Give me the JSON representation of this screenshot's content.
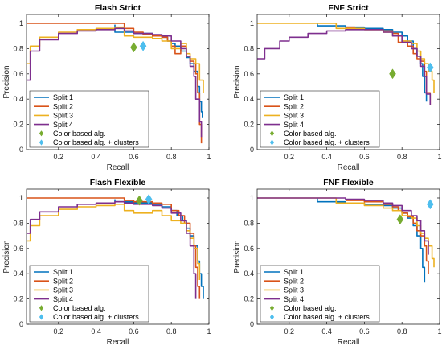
{
  "colors": {
    "split1": "#0072BD",
    "split2": "#D95319",
    "split3": "#EDB120",
    "split4": "#7E2F8E",
    "color_alg": "#77AC30",
    "color_alg_clusters": "#4DBEEE",
    "axis": "#262626",
    "background": "#ffffff"
  },
  "chart_data": [
    {
      "type": "line",
      "title": "Flash Strict",
      "xlabel": "Recall",
      "ylabel": "Precision",
      "xlim": [
        0.03,
        1.0
      ],
      "ylim": [
        0,
        1.07
      ],
      "xticks": [
        0.2,
        0.4,
        0.6,
        0.8,
        1
      ],
      "yticks": [
        0,
        0.2,
        0.4,
        0.6,
        0.8,
        1
      ],
      "xtick_labels": [
        "0.2",
        "0.4",
        "0.6",
        "0.8",
        "1"
      ],
      "ytick_labels": [
        "0",
        "0.2",
        "0.4",
        "0.6",
        "0.8",
        "1"
      ],
      "grid": false,
      "legend_position": "bottom-left",
      "series": [
        {
          "name": "Split 1",
          "color_key": "split1",
          "x": [
            0.5,
            0.5,
            0.6,
            0.7,
            0.75,
            0.78,
            0.8,
            0.82,
            0.85,
            0.88,
            0.9,
            0.92,
            0.94,
            0.95,
            0.96,
            0.965
          ],
          "y": [
            0.99,
            0.93,
            0.92,
            0.9,
            0.89,
            0.86,
            0.84,
            0.82,
            0.78,
            0.73,
            0.68,
            0.62,
            0.5,
            0.38,
            0.3,
            0.25
          ]
        },
        {
          "name": "Split 2",
          "color_key": "split2",
          "x": [
            0.03,
            0.5,
            0.55,
            0.6,
            0.65,
            0.7,
            0.75,
            0.78,
            0.8,
            0.82,
            0.85,
            0.88,
            0.9,
            0.92,
            0.93,
            0.94,
            0.95,
            0.96
          ],
          "y": [
            1.0,
            1.0,
            0.96,
            0.93,
            0.91,
            0.9,
            0.89,
            0.86,
            0.82,
            0.76,
            0.82,
            0.74,
            0.7,
            0.68,
            0.6,
            0.45,
            0.2,
            0.05
          ]
        },
        {
          "name": "Split 3",
          "color_key": "split3",
          "x": [
            0.03,
            0.05,
            0.1,
            0.2,
            0.3,
            0.4,
            0.5,
            0.55,
            0.6,
            0.7,
            0.75,
            0.8,
            0.85,
            0.88,
            0.9,
            0.93,
            0.95,
            0.97
          ],
          "y": [
            0.68,
            0.82,
            0.89,
            0.93,
            0.95,
            0.96,
            0.97,
            0.9,
            0.89,
            0.88,
            0.86,
            0.8,
            0.84,
            0.76,
            0.72,
            0.68,
            0.55,
            0.45
          ]
        },
        {
          "name": "Split 4",
          "color_key": "split4",
          "x": [
            0.03,
            0.05,
            0.1,
            0.2,
            0.3,
            0.4,
            0.5,
            0.55,
            0.6,
            0.7,
            0.75,
            0.8,
            0.85,
            0.88,
            0.9,
            0.92,
            0.93,
            0.95,
            0.96
          ],
          "y": [
            0.55,
            0.78,
            0.87,
            0.92,
            0.94,
            0.95,
            0.96,
            0.94,
            0.92,
            0.91,
            0.9,
            0.86,
            0.8,
            0.74,
            0.66,
            0.58,
            0.4,
            0.22,
            0.1
          ]
        }
      ],
      "markers": [
        {
          "name": "Color based alg.",
          "color_key": "color_alg",
          "x": 0.6,
          "y": 0.81
        },
        {
          "name": "Color based alg. + clusters",
          "color_key": "color_alg_clusters",
          "x": 0.65,
          "y": 0.82
        }
      ]
    },
    {
      "type": "line",
      "title": "FNF Strict",
      "xlabel": "Recall",
      "ylabel": "Precision",
      "xlim": [
        0.03,
        1.0
      ],
      "ylim": [
        0,
        1.07
      ],
      "xticks": [
        0.2,
        0.4,
        0.6,
        0.8,
        1
      ],
      "yticks": [
        0,
        0.2,
        0.4,
        0.6,
        0.8,
        1
      ],
      "xtick_labels": [
        "0.2",
        "0.4",
        "0.6",
        "0.8",
        "1"
      ],
      "ytick_labels": [
        "0",
        "0.2",
        "0.4",
        "0.6",
        "0.8",
        "1"
      ],
      "grid": false,
      "legend_position": "bottom-left",
      "series": [
        {
          "name": "Split 1",
          "color_key": "split1",
          "x": [
            0.35,
            0.35,
            0.5,
            0.6,
            0.7,
            0.75,
            0.8,
            0.83,
            0.86,
            0.88,
            0.9,
            0.91,
            0.92,
            0.93
          ],
          "y": [
            1.0,
            0.98,
            0.97,
            0.96,
            0.95,
            0.93,
            0.9,
            0.86,
            0.8,
            0.74,
            0.68,
            0.58,
            0.45,
            0.38
          ]
        },
        {
          "name": "Split 2",
          "color_key": "split2",
          "x": [
            0.5,
            0.55,
            0.6,
            0.7,
            0.75,
            0.78,
            0.8,
            0.83,
            0.86,
            0.88,
            0.9,
            0.92,
            0.93,
            0.95
          ],
          "y": [
            0.97,
            0.96,
            0.95,
            0.94,
            0.92,
            0.85,
            0.86,
            0.82,
            0.76,
            0.72,
            0.7,
            0.62,
            0.45,
            0.35
          ]
        },
        {
          "name": "Split 3",
          "color_key": "split3",
          "x": [
            0.03,
            0.45,
            0.45,
            0.6,
            0.7,
            0.75,
            0.8,
            0.85,
            0.88,
            0.9,
            0.92,
            0.94,
            0.96,
            0.97
          ],
          "y": [
            1.0,
            1.0,
            0.96,
            0.95,
            0.93,
            0.9,
            0.86,
            0.84,
            0.78,
            0.72,
            0.68,
            0.62,
            0.55,
            0.45
          ]
        },
        {
          "name": "Split 4",
          "color_key": "split4",
          "x": [
            0.03,
            0.07,
            0.1,
            0.15,
            0.2,
            0.3,
            0.4,
            0.5,
            0.6,
            0.7,
            0.75,
            0.8,
            0.85,
            0.88,
            0.9,
            0.92,
            0.93,
            0.95
          ],
          "y": [
            0.72,
            0.8,
            0.8,
            0.86,
            0.89,
            0.92,
            0.94,
            0.95,
            0.95,
            0.93,
            0.9,
            0.85,
            0.8,
            0.74,
            0.66,
            0.58,
            0.44,
            0.35
          ]
        }
      ],
      "markers": [
        {
          "name": "Color based alg.",
          "color_key": "color_alg",
          "x": 0.75,
          "y": 0.6
        },
        {
          "name": "Color based alg. + clusters",
          "color_key": "color_alg_clusters",
          "x": 0.95,
          "y": 0.65
        }
      ]
    },
    {
      "type": "line",
      "title": "Flash Flexible",
      "xlabel": "Recall",
      "ylabel": "Precision",
      "xlim": [
        0.03,
        1.0
      ],
      "ylim": [
        0,
        1.07
      ],
      "xticks": [
        0.2,
        0.4,
        0.6,
        0.8,
        1
      ],
      "yticks": [
        0,
        0.2,
        0.4,
        0.6,
        0.8,
        1
      ],
      "xtick_labels": [
        "0.2",
        "0.4",
        "0.6",
        "0.8",
        "1"
      ],
      "ytick_labels": [
        "0",
        "0.2",
        "0.4",
        "0.6",
        "0.8",
        "1"
      ],
      "grid": false,
      "legend_position": "bottom-left",
      "series": [
        {
          "name": "Split 1",
          "color_key": "split1",
          "x": [
            0.5,
            0.5,
            0.6,
            0.7,
            0.75,
            0.8,
            0.83,
            0.86,
            0.88,
            0.9,
            0.92,
            0.94,
            0.95,
            0.96,
            0.97
          ],
          "y": [
            0.99,
            0.97,
            0.96,
            0.95,
            0.93,
            0.9,
            0.86,
            0.82,
            0.76,
            0.7,
            0.62,
            0.5,
            0.4,
            0.3,
            0.2
          ]
        },
        {
          "name": "Split 2",
          "color_key": "split2",
          "x": [
            0.03,
            0.5,
            0.55,
            0.6,
            0.7,
            0.75,
            0.8,
            0.84,
            0.87,
            0.9,
            0.92,
            0.93,
            0.94,
            0.95
          ],
          "y": [
            1.0,
            1.0,
            0.98,
            0.97,
            0.96,
            0.95,
            0.9,
            0.86,
            0.8,
            0.72,
            0.62,
            0.45,
            0.3,
            0.2
          ]
        },
        {
          "name": "Split 3",
          "color_key": "split3",
          "x": [
            0.03,
            0.05,
            0.1,
            0.2,
            0.3,
            0.4,
            0.5,
            0.55,
            0.6,
            0.7,
            0.75,
            0.8,
            0.85,
            0.88,
            0.9,
            0.92,
            0.94,
            0.95
          ],
          "y": [
            0.66,
            0.78,
            0.86,
            0.91,
            0.93,
            0.94,
            0.95,
            0.9,
            0.88,
            0.9,
            0.86,
            0.82,
            0.8,
            0.74,
            0.68,
            0.6,
            0.48,
            0.35
          ]
        },
        {
          "name": "Split 4",
          "color_key": "split4",
          "x": [
            0.03,
            0.05,
            0.1,
            0.2,
            0.3,
            0.4,
            0.5,
            0.55,
            0.6,
            0.7,
            0.75,
            0.8,
            0.85,
            0.88,
            0.9,
            0.92,
            0.93
          ],
          "y": [
            0.72,
            0.83,
            0.89,
            0.93,
            0.95,
            0.96,
            0.97,
            0.96,
            0.95,
            0.94,
            0.92,
            0.88,
            0.82,
            0.72,
            0.62,
            0.4,
            0.2
          ]
        }
      ],
      "markers": [
        {
          "name": "Color based alg.",
          "color_key": "color_alg",
          "x": 0.63,
          "y": 0.98
        },
        {
          "name": "Color based alg. + clusters",
          "color_key": "color_alg_clusters",
          "x": 0.68,
          "y": 0.99
        }
      ]
    },
    {
      "type": "line",
      "title": "FNF Flexible",
      "xlabel": "Recall",
      "ylabel": "Precision",
      "xlim": [
        0.03,
        1.0
      ],
      "ylim": [
        0,
        1.07
      ],
      "xticks": [
        0.2,
        0.4,
        0.6,
        0.8,
        1
      ],
      "yticks": [
        0,
        0.2,
        0.4,
        0.6,
        0.8,
        1
      ],
      "xtick_labels": [
        "0.2",
        "0.4",
        "0.6",
        "0.8",
        "1"
      ],
      "ytick_labels": [
        "0",
        "0.2",
        "0.4",
        "0.6",
        "0.8",
        "1"
      ],
      "grid": false,
      "legend_position": "bottom-left",
      "series": [
        {
          "name": "Split 1",
          "color_key": "split1",
          "x": [
            0.35,
            0.35,
            0.5,
            0.6,
            0.7,
            0.75,
            0.8,
            0.83,
            0.86,
            0.88,
            0.9,
            0.91,
            0.92
          ],
          "y": [
            1.0,
            0.97,
            0.96,
            0.95,
            0.94,
            0.92,
            0.88,
            0.84,
            0.78,
            0.7,
            0.6,
            0.45,
            0.33
          ]
        },
        {
          "name": "Split 2",
          "color_key": "split2",
          "x": [
            0.5,
            0.6,
            0.7,
            0.75,
            0.78,
            0.8,
            0.83,
            0.86,
            0.88,
            0.9,
            0.92,
            0.93,
            0.94
          ],
          "y": [
            0.98,
            0.97,
            0.95,
            0.93,
            0.9,
            0.88,
            0.85,
            0.8,
            0.74,
            0.7,
            0.62,
            0.5,
            0.4
          ]
        },
        {
          "name": "Split 3",
          "color_key": "split3",
          "x": [
            0.03,
            0.45,
            0.45,
            0.6,
            0.7,
            0.75,
            0.8,
            0.85,
            0.88,
            0.9,
            0.92,
            0.94,
            0.96,
            0.97
          ],
          "y": [
            1.0,
            1.0,
            0.96,
            0.94,
            0.92,
            0.9,
            0.86,
            0.84,
            0.78,
            0.72,
            0.68,
            0.62,
            0.52,
            0.45
          ]
        },
        {
          "name": "Split 4",
          "color_key": "split4",
          "x": [
            0.03,
            0.3,
            0.5,
            0.6,
            0.7,
            0.75,
            0.8,
            0.85,
            0.88,
            0.9,
            0.92,
            0.94
          ],
          "y": [
            1.0,
            1.0,
            0.99,
            0.98,
            0.96,
            0.94,
            0.9,
            0.86,
            0.82,
            0.74,
            0.66,
            0.55
          ]
        }
      ],
      "markers": [
        {
          "name": "Color based alg.",
          "color_key": "color_alg",
          "x": 0.79,
          "y": 0.83
        },
        {
          "name": "Color based alg. + clusters",
          "color_key": "color_alg_clusters",
          "x": 0.95,
          "y": 0.95
        }
      ]
    }
  ]
}
